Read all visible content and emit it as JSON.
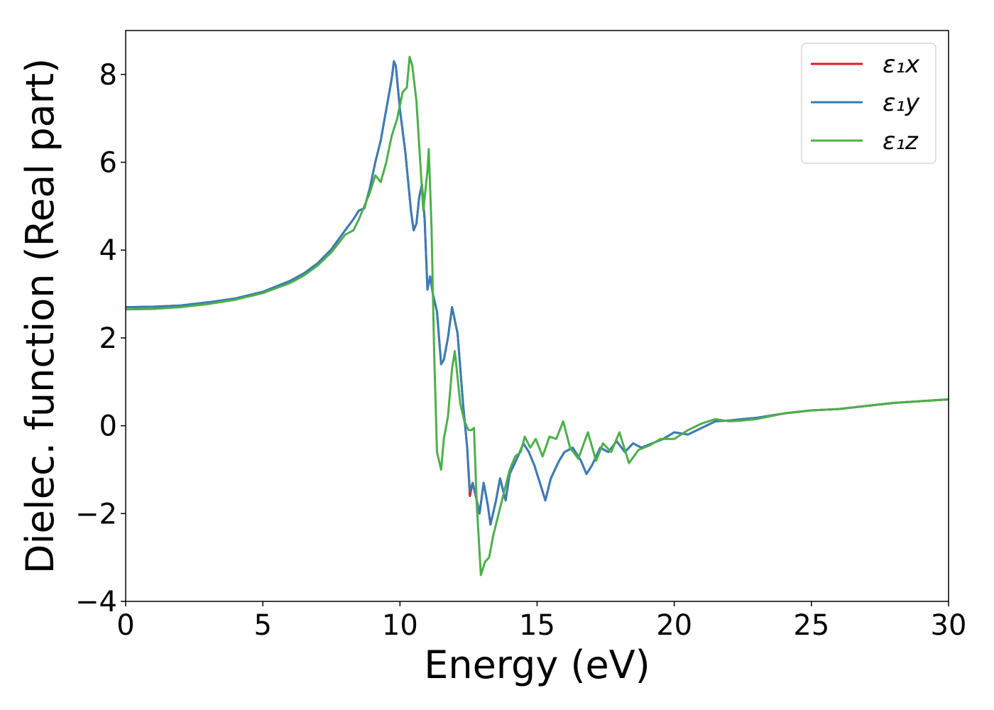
{
  "chart_data": {
    "type": "line",
    "title": "",
    "xlabel": "Energy (eV)",
    "ylabel": "Dielec. function (Real part)",
    "xlim": [
      0,
      30
    ],
    "ylim": [
      -4,
      9
    ],
    "xticks": [
      0,
      5,
      10,
      15,
      20,
      25,
      30
    ],
    "xtick_labels": [
      "0",
      "5",
      "10",
      "15",
      "20",
      "25",
      "30"
    ],
    "yticks": [
      -4,
      -2,
      0,
      2,
      4,
      6,
      8
    ],
    "ytick_labels": [
      "−4",
      "−2",
      "0",
      "2",
      "4",
      "6",
      "8"
    ],
    "grid": false,
    "legend_position": "top-right",
    "series": [
      {
        "name": "ε₁x",
        "color": "#e41a1c",
        "points": [
          [
            0,
            2.7
          ],
          [
            1,
            2.71
          ],
          [
            2,
            2.74
          ],
          [
            3,
            2.81
          ],
          [
            4,
            2.9
          ],
          [
            5,
            3.05
          ],
          [
            6,
            3.3
          ],
          [
            6.5,
            3.47
          ],
          [
            7,
            3.7
          ],
          [
            7.5,
            4.02
          ],
          [
            8,
            4.45
          ],
          [
            8.3,
            4.7
          ],
          [
            8.5,
            4.9
          ],
          [
            8.7,
            4.95
          ],
          [
            8.9,
            5.4
          ],
          [
            9.1,
            6.0
          ],
          [
            9.3,
            6.5
          ],
          [
            9.5,
            7.2
          ],
          [
            9.7,
            7.9
          ],
          [
            9.78,
            8.3
          ],
          [
            9.85,
            8.2
          ],
          [
            10.0,
            7.2
          ],
          [
            10.2,
            6.2
          ],
          [
            10.4,
            4.9
          ],
          [
            10.5,
            4.45
          ],
          [
            10.6,
            4.6
          ],
          [
            10.7,
            5.2
          ],
          [
            10.8,
            5.5
          ],
          [
            10.9,
            4.7
          ],
          [
            11.0,
            3.1
          ],
          [
            11.1,
            3.4
          ],
          [
            11.2,
            3.0
          ],
          [
            11.35,
            2.6
          ],
          [
            11.5,
            1.4
          ],
          [
            11.6,
            1.5
          ],
          [
            11.75,
            2.0
          ],
          [
            11.9,
            2.7
          ],
          [
            12.1,
            2.1
          ],
          [
            12.3,
            0.5
          ],
          [
            12.45,
            -0.5
          ],
          [
            12.55,
            -1.6
          ],
          [
            12.65,
            -1.3
          ],
          [
            12.8,
            -1.7
          ],
          [
            12.9,
            -2.0
          ],
          [
            13.05,
            -1.3
          ],
          [
            13.2,
            -1.8
          ],
          [
            13.3,
            -2.25
          ],
          [
            13.5,
            -1.7
          ],
          [
            13.65,
            -1.2
          ],
          [
            13.85,
            -1.7
          ],
          [
            14.0,
            -1.1
          ],
          [
            14.3,
            -0.7
          ],
          [
            14.5,
            -0.4
          ],
          [
            14.7,
            -0.6
          ],
          [
            14.9,
            -0.9
          ],
          [
            15.1,
            -1.3
          ],
          [
            15.3,
            -1.7
          ],
          [
            15.5,
            -1.2
          ],
          [
            15.8,
            -0.8
          ],
          [
            16.0,
            -0.6
          ],
          [
            16.3,
            -0.5
          ],
          [
            16.6,
            -0.8
          ],
          [
            16.8,
            -1.1
          ],
          [
            17.0,
            -0.9
          ],
          [
            17.3,
            -0.5
          ],
          [
            17.6,
            -0.6
          ],
          [
            17.9,
            -0.35
          ],
          [
            18.2,
            -0.6
          ],
          [
            18.5,
            -0.4
          ],
          [
            18.8,
            -0.5
          ],
          [
            19.2,
            -0.4
          ],
          [
            19.6,
            -0.3
          ],
          [
            20.0,
            -0.15
          ],
          [
            20.5,
            -0.2
          ],
          [
            21.0,
            -0.05
          ],
          [
            21.5,
            0.1
          ],
          [
            22.0,
            0.12
          ],
          [
            22.5,
            0.15
          ],
          [
            23.0,
            0.18
          ],
          [
            24.0,
            0.28
          ],
          [
            25.0,
            0.35
          ],
          [
            26.0,
            0.38
          ],
          [
            27.0,
            0.45
          ],
          [
            28.0,
            0.52
          ],
          [
            29.0,
            0.56
          ],
          [
            30.0,
            0.6
          ]
        ]
      },
      {
        "name": "ε₁y",
        "color": "#377eb8",
        "points": [
          [
            0,
            2.7
          ],
          [
            1,
            2.71
          ],
          [
            2,
            2.74
          ],
          [
            3,
            2.81
          ],
          [
            4,
            2.9
          ],
          [
            5,
            3.05
          ],
          [
            6,
            3.3
          ],
          [
            6.5,
            3.47
          ],
          [
            7,
            3.7
          ],
          [
            7.5,
            4.02
          ],
          [
            8,
            4.45
          ],
          [
            8.3,
            4.7
          ],
          [
            8.5,
            4.9
          ],
          [
            8.7,
            4.95
          ],
          [
            8.9,
            5.4
          ],
          [
            9.1,
            6.0
          ],
          [
            9.3,
            6.5
          ],
          [
            9.5,
            7.2
          ],
          [
            9.7,
            7.9
          ],
          [
            9.78,
            8.3
          ],
          [
            9.85,
            8.2
          ],
          [
            10.0,
            7.2
          ],
          [
            10.2,
            6.2
          ],
          [
            10.4,
            4.9
          ],
          [
            10.5,
            4.45
          ],
          [
            10.6,
            4.6
          ],
          [
            10.7,
            5.2
          ],
          [
            10.8,
            5.5
          ],
          [
            10.9,
            4.7
          ],
          [
            11.0,
            3.1
          ],
          [
            11.1,
            3.4
          ],
          [
            11.2,
            3.0
          ],
          [
            11.35,
            2.6
          ],
          [
            11.5,
            1.4
          ],
          [
            11.6,
            1.5
          ],
          [
            11.75,
            2.0
          ],
          [
            11.9,
            2.7
          ],
          [
            12.1,
            2.1
          ],
          [
            12.3,
            0.5
          ],
          [
            12.45,
            -0.5
          ],
          [
            12.55,
            -1.5
          ],
          [
            12.65,
            -1.3
          ],
          [
            12.8,
            -1.7
          ],
          [
            12.9,
            -2.0
          ],
          [
            13.05,
            -1.3
          ],
          [
            13.2,
            -1.8
          ],
          [
            13.3,
            -2.25
          ],
          [
            13.5,
            -1.7
          ],
          [
            13.65,
            -1.2
          ],
          [
            13.85,
            -1.7
          ],
          [
            14.0,
            -1.1
          ],
          [
            14.3,
            -0.7
          ],
          [
            14.5,
            -0.4
          ],
          [
            14.7,
            -0.6
          ],
          [
            14.9,
            -0.9
          ],
          [
            15.1,
            -1.3
          ],
          [
            15.3,
            -1.7
          ],
          [
            15.5,
            -1.2
          ],
          [
            15.8,
            -0.8
          ],
          [
            16.0,
            -0.6
          ],
          [
            16.3,
            -0.5
          ],
          [
            16.6,
            -0.8
          ],
          [
            16.8,
            -1.1
          ],
          [
            17.0,
            -0.9
          ],
          [
            17.3,
            -0.5
          ],
          [
            17.6,
            -0.6
          ],
          [
            17.9,
            -0.35
          ],
          [
            18.2,
            -0.6
          ],
          [
            18.5,
            -0.4
          ],
          [
            18.8,
            -0.5
          ],
          [
            19.2,
            -0.4
          ],
          [
            19.6,
            -0.3
          ],
          [
            20.0,
            -0.15
          ],
          [
            20.5,
            -0.2
          ],
          [
            21.0,
            -0.05
          ],
          [
            21.5,
            0.1
          ],
          [
            22.0,
            0.12
          ],
          [
            22.5,
            0.15
          ],
          [
            23.0,
            0.18
          ],
          [
            24.0,
            0.28
          ],
          [
            25.0,
            0.35
          ],
          [
            26.0,
            0.38
          ],
          [
            27.0,
            0.45
          ],
          [
            28.0,
            0.52
          ],
          [
            29.0,
            0.56
          ],
          [
            30.0,
            0.6
          ]
        ]
      },
      {
        "name": "ε₁z",
        "color": "#4daf4a",
        "points": [
          [
            0,
            2.65
          ],
          [
            1,
            2.66
          ],
          [
            2,
            2.7
          ],
          [
            3,
            2.77
          ],
          [
            4,
            2.87
          ],
          [
            5,
            3.02
          ],
          [
            6,
            3.25
          ],
          [
            6.5,
            3.42
          ],
          [
            7,
            3.65
          ],
          [
            7.5,
            3.95
          ],
          [
            8,
            4.35
          ],
          [
            8.3,
            4.45
          ],
          [
            8.5,
            4.7
          ],
          [
            8.7,
            5.0
          ],
          [
            8.9,
            5.3
          ],
          [
            9.1,
            5.7
          ],
          [
            9.3,
            5.55
          ],
          [
            9.5,
            6.0
          ],
          [
            9.7,
            6.6
          ],
          [
            9.9,
            7.0
          ],
          [
            10.1,
            7.6
          ],
          [
            10.25,
            7.7
          ],
          [
            10.35,
            8.4
          ],
          [
            10.45,
            8.2
          ],
          [
            10.6,
            7.4
          ],
          [
            10.75,
            5.9
          ],
          [
            10.85,
            4.9
          ],
          [
            11.0,
            5.8
          ],
          [
            11.05,
            6.3
          ],
          [
            11.15,
            4.5
          ],
          [
            11.25,
            1.6
          ],
          [
            11.35,
            -0.6
          ],
          [
            11.5,
            -1.0
          ],
          [
            11.6,
            -0.3
          ],
          [
            11.75,
            0.2
          ],
          [
            11.9,
            1.3
          ],
          [
            12.0,
            1.7
          ],
          [
            12.2,
            0.5
          ],
          [
            12.35,
            0.1
          ],
          [
            12.5,
            -0.1
          ],
          [
            12.6,
            -0.1
          ],
          [
            12.7,
            -0.05
          ],
          [
            12.8,
            -1.8
          ],
          [
            12.95,
            -3.4
          ],
          [
            13.1,
            -3.1
          ],
          [
            13.25,
            -3.0
          ],
          [
            13.4,
            -2.5
          ],
          [
            13.6,
            -2.0
          ],
          [
            13.8,
            -1.5
          ],
          [
            14.0,
            -1.0
          ],
          [
            14.2,
            -0.7
          ],
          [
            14.4,
            -0.6
          ],
          [
            14.55,
            -0.25
          ],
          [
            14.75,
            -0.5
          ],
          [
            14.95,
            -0.3
          ],
          [
            15.2,
            -0.7
          ],
          [
            15.45,
            -0.25
          ],
          [
            15.7,
            -0.3
          ],
          [
            15.95,
            0.1
          ],
          [
            16.2,
            -0.5
          ],
          [
            16.5,
            -0.75
          ],
          [
            16.85,
            -0.15
          ],
          [
            17.15,
            -0.8
          ],
          [
            17.4,
            -0.4
          ],
          [
            17.7,
            -0.6
          ],
          [
            18.0,
            -0.15
          ],
          [
            18.35,
            -0.85
          ],
          [
            18.7,
            -0.55
          ],
          [
            19.1,
            -0.45
          ],
          [
            19.5,
            -0.3
          ],
          [
            20.0,
            -0.3
          ],
          [
            20.5,
            -0.1
          ],
          [
            21.0,
            0.05
          ],
          [
            21.5,
            0.15
          ],
          [
            22.0,
            0.1
          ],
          [
            22.5,
            0.12
          ],
          [
            23.0,
            0.15
          ],
          [
            24.0,
            0.28
          ],
          [
            25.0,
            0.35
          ],
          [
            26.0,
            0.38
          ],
          [
            27.0,
            0.45
          ],
          [
            28.0,
            0.52
          ],
          [
            29.0,
            0.56
          ],
          [
            30.0,
            0.6
          ]
        ]
      }
    ]
  }
}
